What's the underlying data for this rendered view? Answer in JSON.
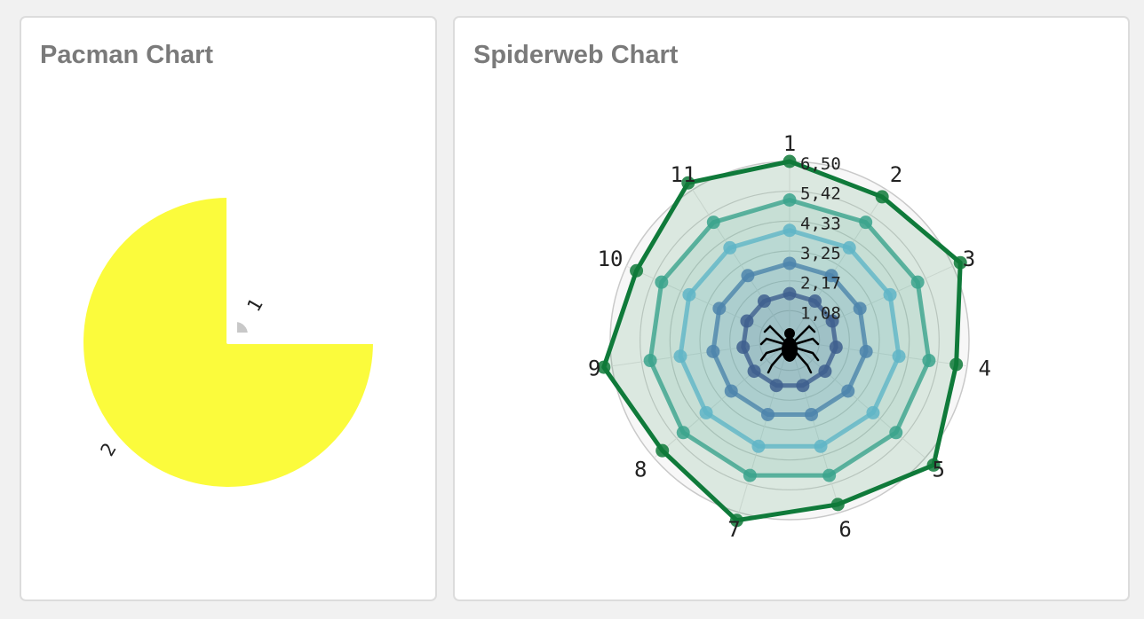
{
  "panels": [
    {
      "title": "Pacman Chart"
    },
    {
      "title": "Spiderweb Chart"
    }
  ],
  "chart_data": [
    {
      "type": "pie",
      "title": "Pacman Chart",
      "categories": [
        "1",
        "2"
      ],
      "values": [
        0.8,
        74.2
      ],
      "colors": [
        "#c8c8c8",
        "#fbfb3c"
      ]
    },
    {
      "type": "radar",
      "title": "Spiderweb Chart",
      "categories": [
        "1",
        "2",
        "3",
        "4",
        "5",
        "6",
        "7",
        "8",
        "9",
        "10",
        "11"
      ],
      "radial_ticks": [
        "1,08",
        "2,17",
        "3,25",
        "4,33",
        "5,42",
        "6,50"
      ],
      "radial_max": 6.5,
      "center_icon": "spider-icon",
      "series": [
        {
          "values": [
            1.7,
            1.7,
            1.7,
            1.7,
            1.7,
            1.7,
            1.7,
            1.7,
            1.7,
            1.7,
            1.7
          ],
          "color": "#3e5f8e"
        },
        {
          "values": [
            2.8,
            2.8,
            2.8,
            2.8,
            2.8,
            2.8,
            2.8,
            2.8,
            2.8,
            2.8,
            2.8
          ],
          "color": "#4c84ab"
        },
        {
          "values": [
            4.0,
            4.0,
            4.0,
            4.0,
            4.0,
            4.0,
            4.0,
            4.0,
            4.0,
            4.0,
            4.0
          ],
          "color": "#5fb5c7"
        },
        {
          "values": [
            5.1,
            5.1,
            5.1,
            5.1,
            5.1,
            5.1,
            5.1,
            5.1,
            5.1,
            5.1,
            5.1
          ],
          "color": "#3aa38c"
        },
        {
          "values": [
            6.5,
            6.2,
            6.8,
            6.1,
            6.9,
            6.2,
            6.8,
            6.1,
            6.8,
            6.1,
            6.8
          ],
          "color": "#0f7a3a"
        }
      ]
    }
  ]
}
